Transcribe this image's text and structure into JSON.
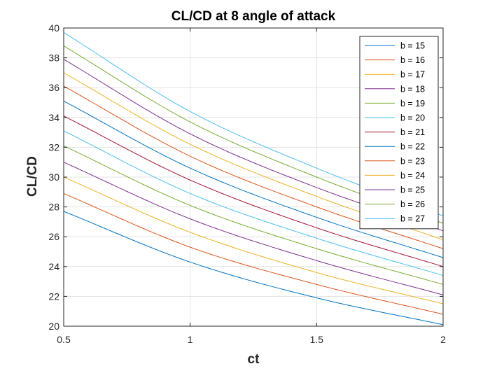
{
  "chart_data": {
    "type": "line",
    "title": "CL/CD at 8 angle of attack",
    "xlabel": "ct",
    "ylabel": "CL/CD",
    "xlim": [
      0.5,
      2
    ],
    "ylim": [
      20,
      40
    ],
    "xticks": [
      0.5,
      1,
      1.5,
      2
    ],
    "xtick_labels": [
      "0.5",
      "1",
      "1.5",
      "2"
    ],
    "yticks": [
      20,
      22,
      24,
      26,
      28,
      30,
      32,
      34,
      36,
      38,
      40
    ],
    "ytick_labels": [
      "20",
      "22",
      "24",
      "26",
      "28",
      "30",
      "32",
      "34",
      "36",
      "38",
      "40"
    ],
    "grid": true,
    "legend_position": "top-right",
    "x": [
      0.5,
      1,
      1.5,
      2
    ],
    "series": [
      {
        "name": "b = 15",
        "color": "#0072BD",
        "values": [
          27.7,
          24.3,
          21.9,
          20.1
        ]
      },
      {
        "name": "b = 16",
        "color": "#D95319",
        "values": [
          28.9,
          25.3,
          22.8,
          20.8
        ]
      },
      {
        "name": "b = 17",
        "color": "#EDB120",
        "values": [
          30.0,
          26.3,
          23.6,
          21.5
        ]
      },
      {
        "name": "b = 18",
        "color": "#7E2F8E",
        "values": [
          31.0,
          27.2,
          24.4,
          22.1
        ]
      },
      {
        "name": "b = 19",
        "color": "#77AC30",
        "values": [
          32.1,
          28.1,
          25.2,
          22.8
        ]
      },
      {
        "name": "b = 20",
        "color": "#4DBEEE",
        "values": [
          33.1,
          28.9,
          25.9,
          23.4
        ]
      },
      {
        "name": "b = 21",
        "color": "#A2142F",
        "values": [
          34.1,
          29.8,
          26.6,
          24.0
        ]
      },
      {
        "name": "b = 22",
        "color": "#0072BD",
        "values": [
          35.1,
          30.6,
          27.3,
          24.6
        ]
      },
      {
        "name": "b = 23",
        "color": "#D95319",
        "values": [
          36.1,
          31.4,
          28.0,
          25.2
        ]
      },
      {
        "name": "b = 24",
        "color": "#EDB120",
        "values": [
          37.0,
          32.2,
          28.7,
          25.8
        ]
      },
      {
        "name": "b = 25",
        "color": "#7E2F8E",
        "values": [
          37.9,
          32.9,
          29.3,
          26.4
        ]
      },
      {
        "name": "b = 26",
        "color": "#77AC30",
        "values": [
          38.8,
          33.7,
          30.0,
          26.9
        ]
      },
      {
        "name": "b = 27",
        "color": "#4DBEEE",
        "values": [
          39.7,
          34.4,
          30.6,
          27.4
        ]
      }
    ]
  }
}
